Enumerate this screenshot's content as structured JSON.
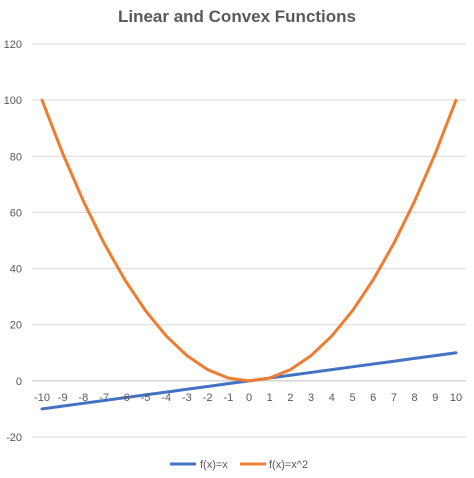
{
  "chart_data": {
    "type": "line",
    "title": "Linear and Convex Functions",
    "xlabel": "",
    "ylabel": "",
    "x": [
      -10,
      -9,
      -8,
      -7,
      -6,
      -5,
      -4,
      -3,
      -2,
      -1,
      0,
      1,
      2,
      3,
      4,
      5,
      6,
      7,
      8,
      9,
      10
    ],
    "y_ticks": [
      -20,
      0,
      20,
      40,
      60,
      80,
      100,
      120
    ],
    "ylim": [
      -20,
      120
    ],
    "grid": "horizontal",
    "legend_position": "bottom",
    "series": [
      {
        "name": "f(x)=x",
        "color": "#4472C4",
        "values": [
          -10,
          -9,
          -8,
          -7,
          -6,
          -5,
          -4,
          -3,
          -2,
          -1,
          0,
          1,
          2,
          3,
          4,
          5,
          6,
          7,
          8,
          9,
          10
        ]
      },
      {
        "name": "f(x)=x^2",
        "color": "#ED7D31",
        "values": [
          100,
          81,
          64,
          49,
          36,
          25,
          16,
          9,
          4,
          1,
          0,
          1,
          4,
          9,
          16,
          25,
          36,
          49,
          64,
          81,
          100
        ]
      }
    ]
  }
}
